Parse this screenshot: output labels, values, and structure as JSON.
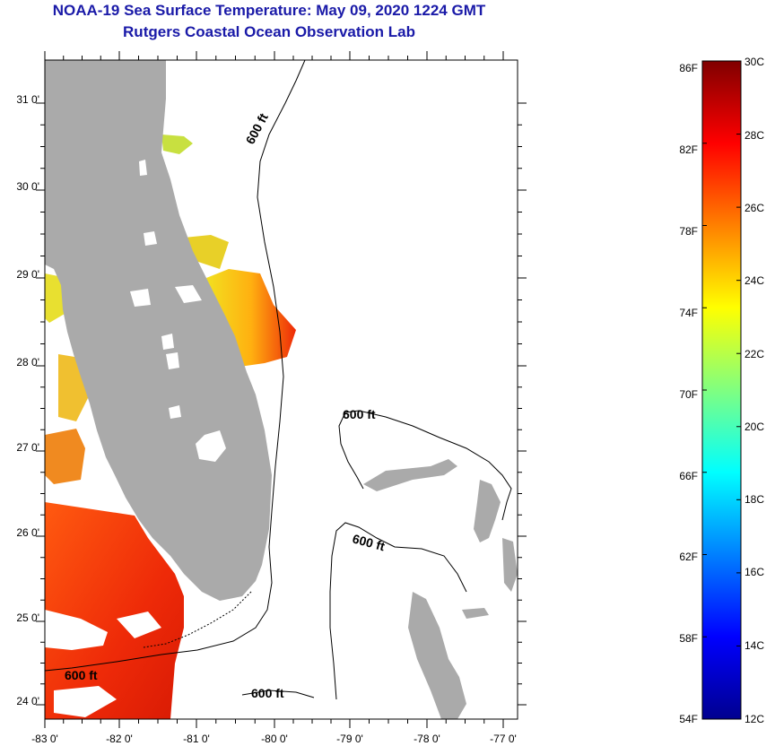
{
  "title": "NOAA-19 Sea Surface Temperature:  May 09, 2020 1224 GMT",
  "subtitle": "Rutgers Coastal Ocean Observation Lab",
  "map": {
    "lon_ticks": [
      "-83 0'",
      "-82 0'",
      "-81 0'",
      "-80 0'",
      "-79 0'",
      "-78 0'",
      "-77 0'"
    ],
    "lat_ticks": [
      "31 0'",
      "30 0'",
      "29 0'",
      "28 0'",
      "27 0'",
      "26 0'",
      "25 0'",
      "24 0'"
    ],
    "contour_labels": [
      "600 ft",
      "600 ft",
      "600 ft",
      "600 ft",
      "600 ft"
    ],
    "land_color": "#aaaaaa",
    "cloud_color": "#ffffff"
  },
  "colorbar": {
    "f_labels": [
      "86F",
      "82F",
      "78F",
      "74F",
      "70F",
      "66F",
      "62F",
      "58F",
      "54F"
    ],
    "c_labels": [
      "30C",
      "28C",
      "26C",
      "24C",
      "22C",
      "20C",
      "18C",
      "16C",
      "14C",
      "12C"
    ],
    "colors": [
      "#00008f",
      "#0000ff",
      "#0080ff",
      "#00ffff",
      "#80ff80",
      "#ffff00",
      "#ff8000",
      "#ff0000",
      "#800000"
    ]
  }
}
